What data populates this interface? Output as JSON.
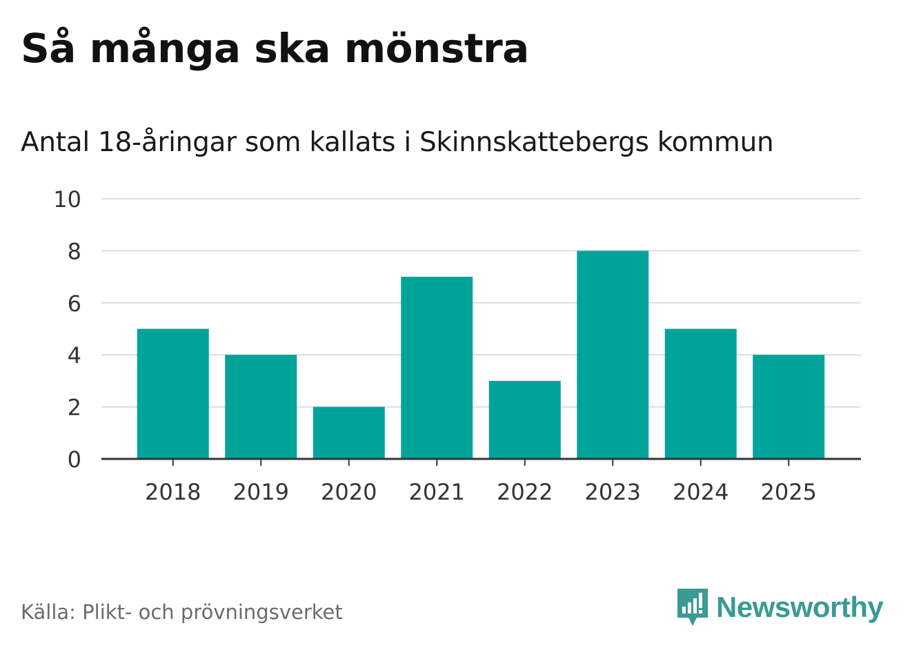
{
  "header": {
    "title": "Så många ska mönstra",
    "subtitle": "Antal 18-åringar som kallats i Skinnskattebergs kommun"
  },
  "footer": {
    "source": "Källa: Plikt- och prövningsverket",
    "brand": "Newsworthy",
    "brand_color": "#3a9a94"
  },
  "chart_data": {
    "type": "bar",
    "title": "Så många ska mönstra",
    "subtitle": "Antal 18-åringar som kallats i Skinnskattebergs kommun",
    "xlabel": "",
    "ylabel": "",
    "categories": [
      "2018",
      "2019",
      "2020",
      "2021",
      "2022",
      "2023",
      "2024",
      "2025"
    ],
    "values": [
      5,
      4,
      2,
      7,
      3,
      8,
      5,
      4
    ],
    "ylim": [
      0,
      10
    ],
    "yticks": [
      0,
      2,
      4,
      6,
      8,
      10
    ],
    "grid": true,
    "bar_color": "#00a39a",
    "grid_color": "#dddddd",
    "axis_color": "#333333"
  }
}
